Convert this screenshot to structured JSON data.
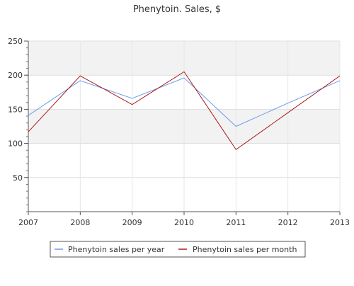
{
  "chart_data": {
    "type": "line",
    "title": "Phenytoin. Sales, $",
    "categories": [
      "2007",
      "2008",
      "2009",
      "2010",
      "2011",
      "2012",
      "2013"
    ],
    "ylim": [
      0,
      250
    ],
    "yticks": [
      "50",
      "100",
      "150",
      "200",
      "250"
    ],
    "grid": true,
    "legend_position": "bottom",
    "series": [
      {
        "name": "Phenytoin sales per year",
        "color": "#6a9ee8",
        "values": [
          141,
          192,
          166,
          196,
          125,
          159,
          192
        ]
      },
      {
        "name": "Phenytoin sales per month",
        "color": "#aa1a1a",
        "values": [
          117,
          199,
          157,
          205,
          91,
          145,
          199
        ]
      }
    ]
  }
}
